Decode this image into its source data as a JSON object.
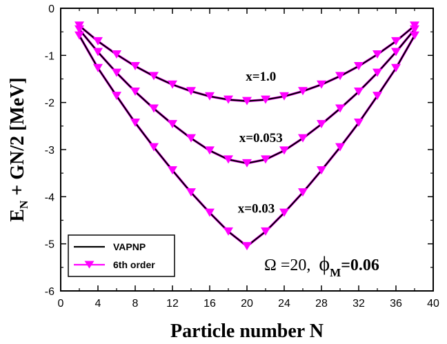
{
  "chart_data": {
    "type": "line",
    "xlabel": "Particle number N",
    "ylabel_main": "E",
    "ylabel_sub": "N",
    "ylabel_rest": " + GN/2 [MeV]",
    "xlim": [
      0,
      40
    ],
    "ylim": [
      -6,
      0
    ],
    "xticks": [
      0,
      4,
      8,
      12,
      16,
      20,
      24,
      28,
      32,
      36,
      40
    ],
    "yticks": [
      0,
      -1,
      -2,
      -3,
      -4,
      -5,
      -6
    ],
    "grid": false,
    "legend_position": "bottom-left",
    "legend": {
      "line_label": "VAPNP",
      "marker_label": "6th order"
    },
    "annotations": [
      {
        "text": "x=1.0",
        "x": 21.5,
        "y": -1.45
      },
      {
        "text": "x=0.053",
        "x": 21.5,
        "y": -2.75
      },
      {
        "text": "x=0.03",
        "x": 21.0,
        "y": -4.25
      }
    ],
    "param_text": {
      "omega": "Ω =20,",
      "phi": "ϕ",
      "phi_sub": "M",
      "phi_value": "=0.06"
    },
    "colors": {
      "line": "#000000",
      "marker": "#ff00ff"
    },
    "x": [
      2,
      4,
      6,
      8,
      10,
      12,
      14,
      16,
      18,
      20,
      22,
      24,
      26,
      28,
      30,
      32,
      34,
      36,
      38
    ],
    "series": [
      {
        "values": [
          -0.37,
          -0.7,
          -0.98,
          -1.23,
          -1.44,
          -1.62,
          -1.76,
          -1.87,
          -1.94,
          -1.97,
          -1.94,
          -1.87,
          -1.76,
          -1.62,
          -1.44,
          -1.23,
          -0.98,
          -0.7,
          -0.37
        ]
      },
      {
        "values": [
          -0.45,
          -0.93,
          -1.37,
          -1.77,
          -2.13,
          -2.46,
          -2.76,
          -3.02,
          -3.21,
          -3.29,
          -3.21,
          -3.02,
          -2.76,
          -2.46,
          -2.13,
          -1.77,
          -1.37,
          -0.93,
          -0.45
        ]
      },
      {
        "values": [
          -0.58,
          -1.27,
          -1.86,
          -2.43,
          -2.95,
          -3.44,
          -3.91,
          -4.34,
          -4.74,
          -5.05,
          -4.74,
          -4.34,
          -3.91,
          -3.44,
          -2.95,
          -2.43,
          -1.86,
          -1.27,
          -0.58
        ]
      }
    ]
  }
}
